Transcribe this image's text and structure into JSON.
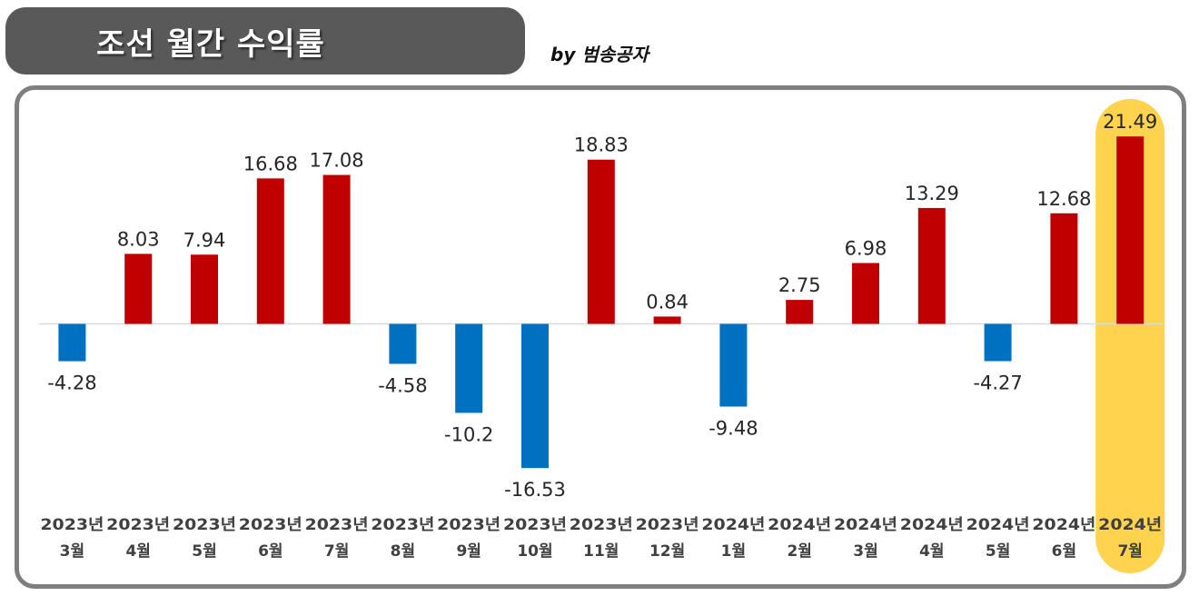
{
  "header": {
    "title": "조선 월간 수익률",
    "byline": "by 범송공자"
  },
  "colors": {
    "positive": "#C00000",
    "negative": "#0070C0",
    "highlight": "#FFD34E",
    "title_bg": "#595959",
    "frame": "#7F7F7F"
  },
  "chart_data": {
    "type": "bar",
    "title": "조선 월간 수익률",
    "categories": [
      [
        "2023년",
        "3월"
      ],
      [
        "2023년",
        "4월"
      ],
      [
        "2023년",
        "5월"
      ],
      [
        "2023년",
        "6월"
      ],
      [
        "2023년",
        "7월"
      ],
      [
        "2023년",
        "8월"
      ],
      [
        "2023년",
        "9월"
      ],
      [
        "2023년",
        "10월"
      ],
      [
        "2023년",
        "11월"
      ],
      [
        "2023년",
        "12월"
      ],
      [
        "2024년",
        "1월"
      ],
      [
        "2024년",
        "2월"
      ],
      [
        "2024년",
        "3월"
      ],
      [
        "2024년",
        "4월"
      ],
      [
        "2024년",
        "5월"
      ],
      [
        "2024년",
        "6월"
      ],
      [
        "2024년",
        "7월"
      ]
    ],
    "values": [
      -4.28,
      8.03,
      7.94,
      16.68,
      17.08,
      -4.58,
      -10.2,
      -16.53,
      18.83,
      0.84,
      -9.48,
      2.75,
      6.98,
      13.29,
      -4.27,
      12.68,
      21.49
    ],
    "value_labels": [
      "-4.28",
      "8.03",
      "7.94",
      "16.68",
      "17.08",
      "-4.58",
      "-10.2",
      "-16.53",
      "18.83",
      "0.84",
      "-9.48",
      "2.75",
      "6.98",
      "13.29",
      "-4.27",
      "12.68",
      "21.49"
    ],
    "highlight_category": "2024년 7월",
    "grid": false,
    "legend": "none"
  }
}
